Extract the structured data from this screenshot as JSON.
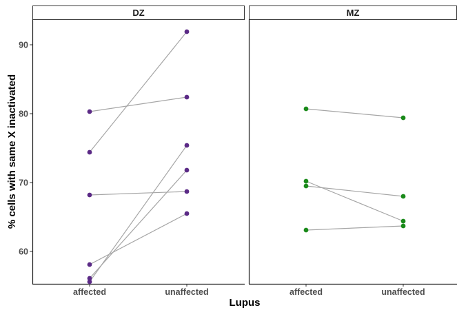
{
  "chart_data": {
    "type": "line",
    "xlabel": "Lupus",
    "ylabel": "% cells with same X inactivated",
    "ylim": [
      55.3,
      93.7
    ],
    "yticks": [
      60,
      70,
      80,
      90
    ],
    "categories": [
      "affected",
      "unaffected"
    ],
    "grid": false,
    "facets": [
      {
        "label": "DZ",
        "color": "#5b2a86",
        "pairs": [
          {
            "affected": 80.3,
            "unaffected": 82.4
          },
          {
            "affected": 74.4,
            "unaffected": 91.9
          },
          {
            "affected": 68.2,
            "unaffected": 68.7
          },
          {
            "affected": 58.1,
            "unaffected": 65.5
          },
          {
            "affected": 56.1,
            "unaffected": 71.8
          },
          {
            "affected": 55.6,
            "unaffected": 75.4
          }
        ]
      },
      {
        "label": "MZ",
        "color": "#1a8a1a",
        "pairs": [
          {
            "affected": 80.7,
            "unaffected": 79.4
          },
          {
            "affected": 70.2,
            "unaffected": 64.4
          },
          {
            "affected": 69.5,
            "unaffected": 68.0
          },
          {
            "affected": 63.1,
            "unaffected": 63.7
          }
        ]
      }
    ]
  }
}
